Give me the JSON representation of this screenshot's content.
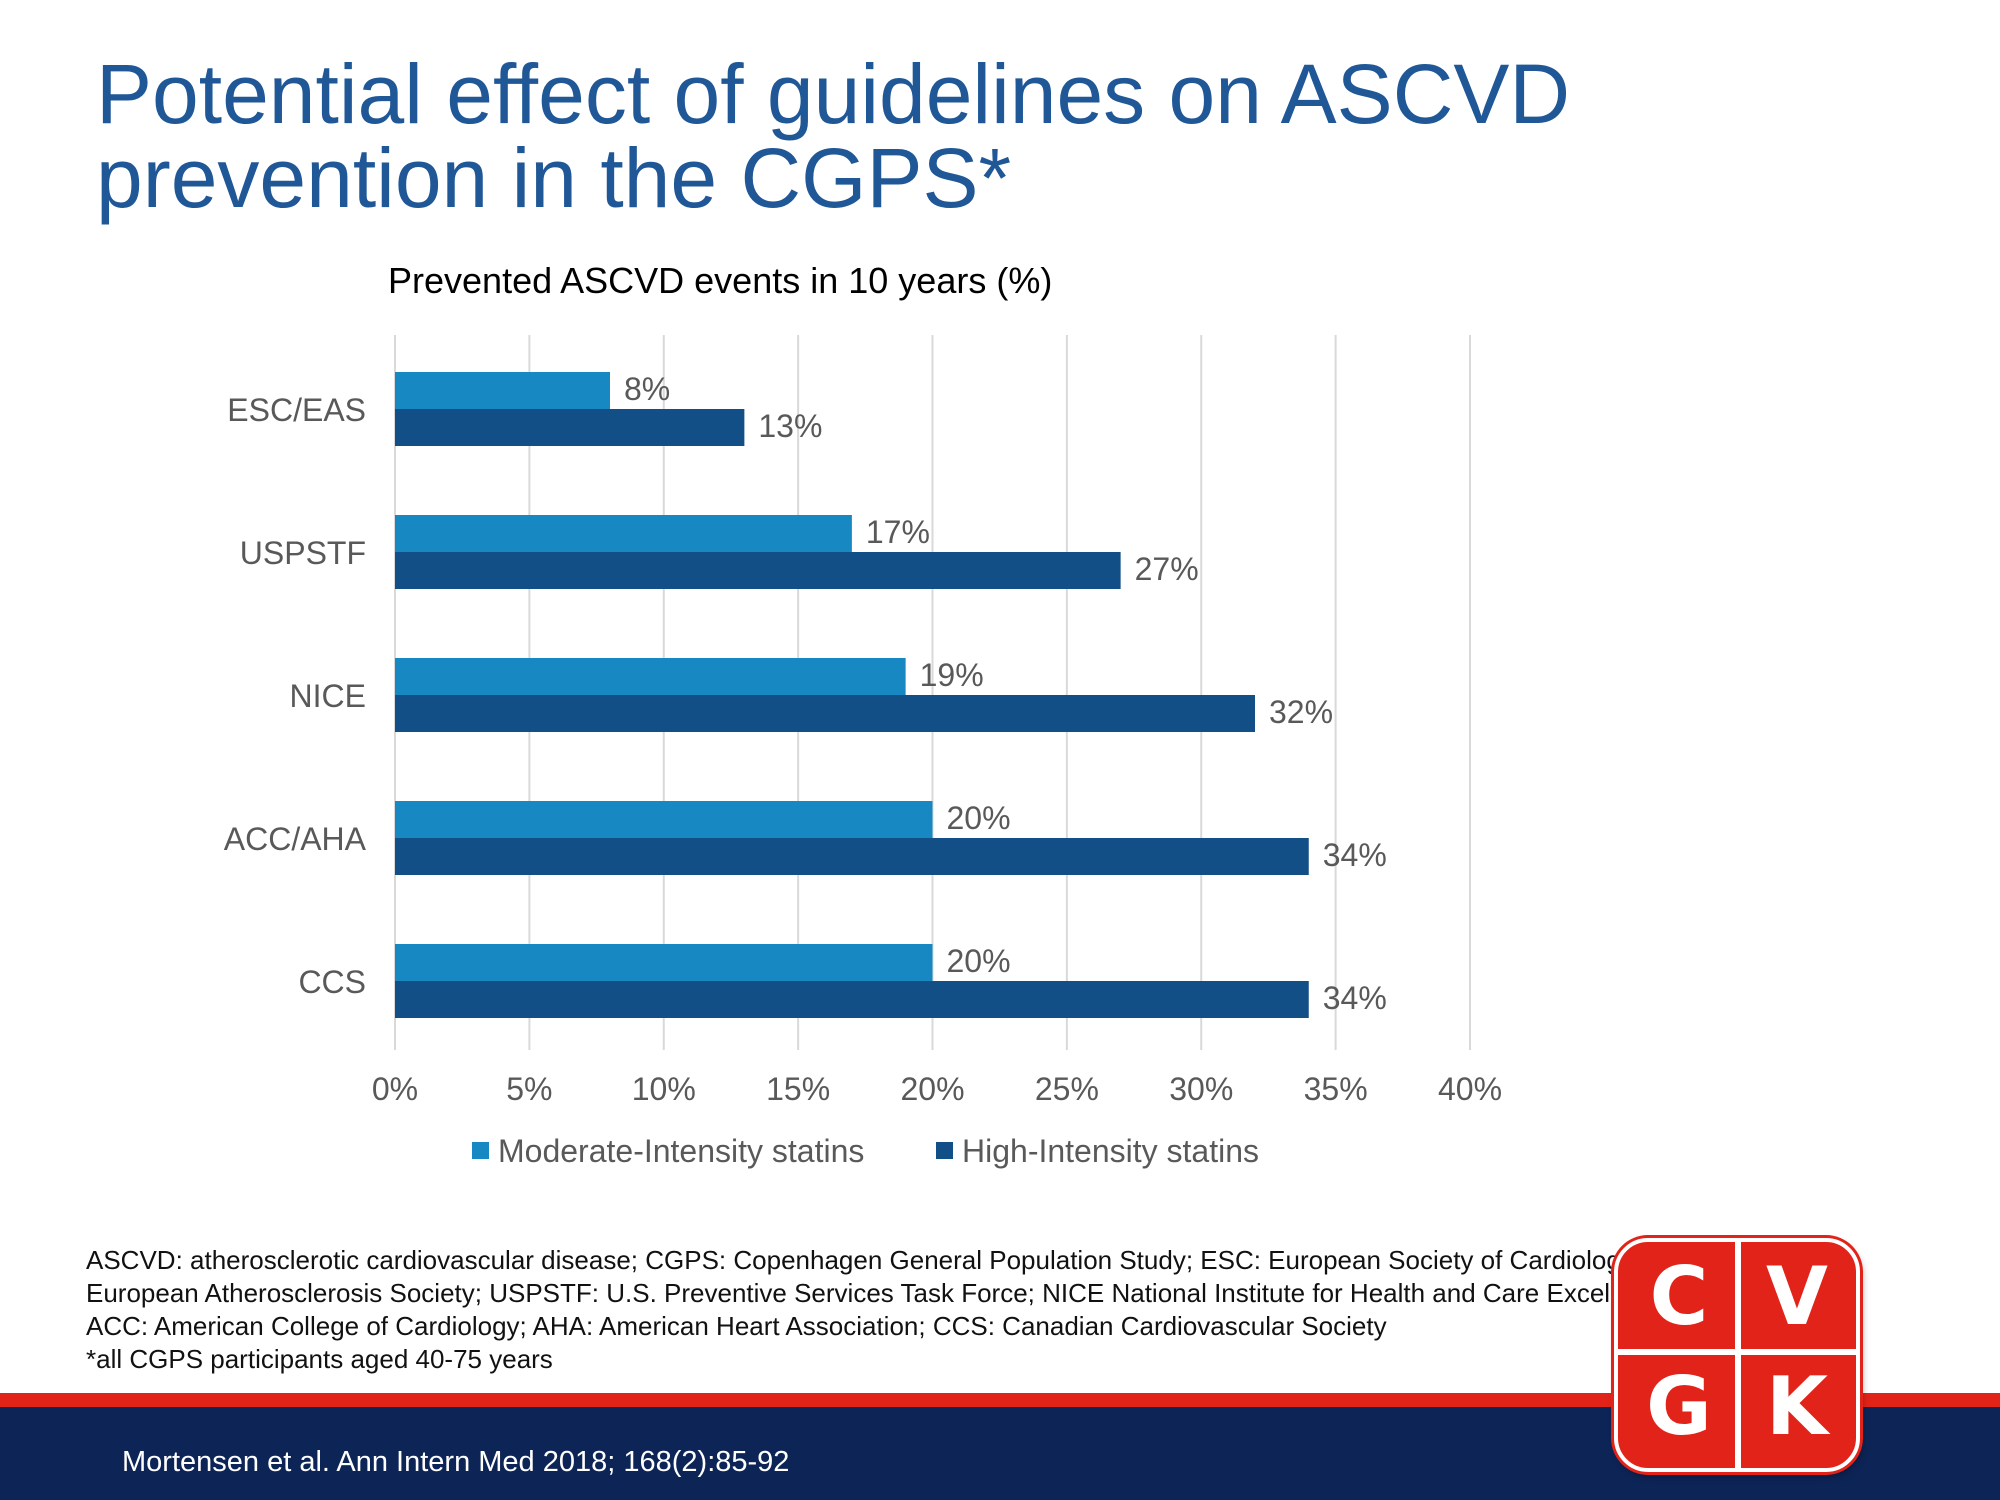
{
  "slide": {
    "title_line1": "Potential effect of guidelines on ASCVD",
    "title_line2": "prevention in the CGPS*"
  },
  "chart_data": {
    "type": "bar",
    "orientation": "horizontal",
    "title": "Prevented ASCVD events in 10 years (%)",
    "categories": [
      "ESC/EAS",
      "USPSTF",
      "NICE",
      "ACC/AHA",
      "CCS"
    ],
    "series": [
      {
        "name": "Moderate-Intensity statins",
        "values": [
          8,
          17,
          19,
          20,
          20
        ],
        "labels": [
          "8%",
          "17%",
          "19%",
          "20%",
          "20%"
        ],
        "color": "#1788c1"
      },
      {
        "name": "High-Intensity statins",
        "values": [
          13,
          27,
          32,
          34,
          34
        ],
        "labels": [
          "13%",
          "27%",
          "32%",
          "34%",
          "34%"
        ],
        "color": "#114f86"
      }
    ],
    "xlim": [
      0,
      40
    ],
    "xticks": [
      0,
      5,
      10,
      15,
      20,
      25,
      30,
      35,
      40
    ],
    "xtick_labels": [
      "0%",
      "5%",
      "10%",
      "15%",
      "20%",
      "25%",
      "30%",
      "35%",
      "40%"
    ],
    "grid": "vertical",
    "legend": "bottom",
    "label_color": "#595959",
    "grid_color": "#d9d9d9"
  },
  "footnote": {
    "line1": "ASCVD: atherosclerotic cardiovascular disease; CGPS: Copenhagen General Population Study; ESC: European Society of Cardiology; EAS:",
    "line2": "European Atherosclerosis Society; USPSTF: U.S. Preventive Services Task Force; NICE National Institute for Health and Care Excellence;",
    "line3": "ACC: American College of Cardiology; AHA: American Heart Association; CCS: Canadian Cardiovascular Society",
    "line4": "*all CGPS participants aged 40-75 years"
  },
  "citation": "Mortensen et al. Ann Intern Med 2018; 168(2):85-92",
  "logo": {
    "letters": [
      "C",
      "V",
      "G",
      "K"
    ],
    "color": "#e2231a"
  }
}
